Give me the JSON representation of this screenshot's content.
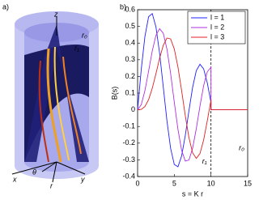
{
  "figure_a": {
    "label": "a)",
    "axis_labels": [
      "z",
      "r₀",
      "r₁",
      "x",
      "θ",
      "r",
      "y"
    ]
  },
  "chart_data": {
    "type": "line",
    "panel_label": "b)",
    "xlabel": "s = K r",
    "ylabel": "B(s)",
    "x": [
      0,
      0.5,
      1,
      1.5,
      2,
      2.5,
      3,
      3.5,
      4,
      4.5,
      5,
      5.5,
      6,
      6.5,
      7,
      7.5,
      8,
      8.5,
      9,
      9.5,
      10,
      10,
      15
    ],
    "series": [
      {
        "name": "l = 1",
        "color": "#2020ff",
        "values": [
          0,
          0.2423,
          0.4401,
          0.5579,
          0.5767,
          0.4971,
          0.3391,
          0.1374,
          -0.066,
          -0.2311,
          -0.3276,
          -0.3414,
          -0.2767,
          -0.1538,
          -0.0047,
          0.1352,
          0.2346,
          0.2731,
          0.2453,
          0.1613,
          0.0435,
          0,
          0
        ]
      },
      {
        "name": "l = 2",
        "color": "#b030e0",
        "values": [
          0,
          0.0307,
          0.115,
          0.2321,
          0.3528,
          0.4461,
          0.4862,
          0.4586,
          0.3641,
          0.2178,
          0.0466,
          -0.1173,
          -0.2429,
          -0.3074,
          -0.3014,
          -0.2302,
          -0.113,
          0.0224,
          0.1448,
          0.2279,
          0.2546,
          0,
          0
        ]
      },
      {
        "name": "l = 3",
        "color": "#e02020",
        "values": [
          0,
          0.0026,
          0.0196,
          0.061,
          0.1289,
          0.2167,
          0.3091,
          0.3867,
          0.4301,
          0.4247,
          0.3649,
          0.2561,
          0.1148,
          -0.0354,
          -0.1675,
          -0.258,
          -0.2911,
          -0.2626,
          -0.1809,
          -0.0653,
          0.0584,
          0,
          0
        ]
      }
    ],
    "xlim": [
      0,
      15
    ],
    "xticks": [
      0,
      5,
      10,
      15
    ],
    "ylim": [
      -0.4,
      0.6
    ],
    "yticks": [
      -0.4,
      -0.3,
      -0.2,
      -0.1,
      0,
      0.1,
      0.2,
      0.3,
      0.4,
      0.5,
      0.6
    ],
    "vline": 10,
    "annotations": [
      "r₁",
      "r₀"
    ],
    "legend": "upper right"
  }
}
